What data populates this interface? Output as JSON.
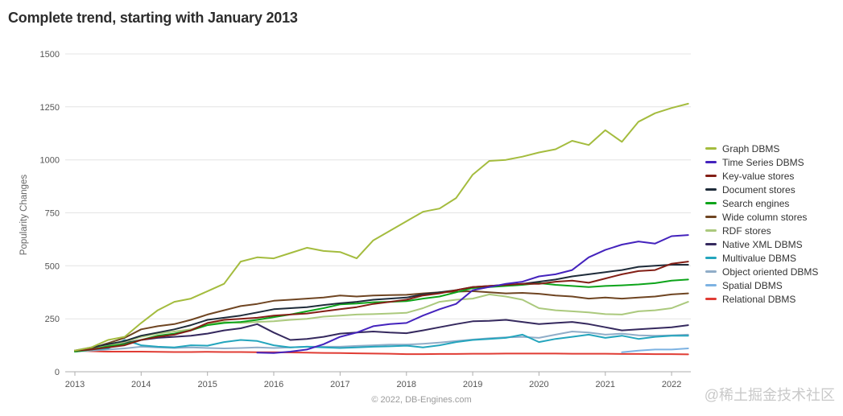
{
  "page": {
    "footer": "© 2022, DB-Engines.com",
    "watermark": "@稀土掘金技术社区"
  },
  "chart_data": {
    "type": "line",
    "title": "Complete trend, starting with January 2013",
    "xlabel": "",
    "ylabel": "Popularity Changes",
    "ylim": [
      0,
      1500
    ],
    "y_ticks": [
      0,
      250,
      500,
      750,
      1000,
      1250,
      1500
    ],
    "x_ticks": [
      2013,
      2014,
      2015,
      2016,
      2017,
      2018,
      2019,
      2020,
      2021,
      2022
    ],
    "x_start": 2013.0,
    "x_step": 0.25,
    "grid": "horizontal",
    "legend_position": "right",
    "series": [
      {
        "name": "Graph DBMS",
        "color": "#a4bc3e",
        "values": [
          100,
          115,
          150,
          165,
          230,
          290,
          330,
          345,
          380,
          415,
          520,
          540,
          535,
          560,
          585,
          570,
          565,
          535,
          620,
          665,
          710,
          755,
          770,
          820,
          930,
          995,
          1000,
          1015,
          1035,
          1050,
          1090,
          1070,
          1140,
          1085,
          1180,
          1220,
          1245,
          1265
        ]
      },
      {
        "name": "Time Series DBMS",
        "color": "#4423bd",
        "values": [
          null,
          null,
          null,
          null,
          null,
          null,
          null,
          null,
          null,
          null,
          null,
          90,
          88,
          95,
          105,
          130,
          165,
          185,
          215,
          225,
          230,
          265,
          295,
          320,
          385,
          400,
          415,
          425,
          450,
          460,
          480,
          540,
          575,
          600,
          615,
          605,
          640,
          645
        ]
      },
      {
        "name": "Key-value stores",
        "color": "#831f16",
        "values": [
          100,
          105,
          115,
          125,
          150,
          165,
          175,
          195,
          230,
          245,
          250,
          255,
          265,
          270,
          275,
          285,
          295,
          305,
          320,
          330,
          340,
          360,
          370,
          385,
          400,
          405,
          410,
          415,
          415,
          425,
          430,
          420,
          440,
          460,
          475,
          480,
          510,
          520
        ]
      },
      {
        "name": "Document stores",
        "color": "#1f2c3a",
        "values": [
          100,
          115,
          130,
          145,
          170,
          185,
          200,
          220,
          245,
          255,
          265,
          280,
          295,
          300,
          305,
          315,
          323,
          330,
          340,
          345,
          350,
          365,
          375,
          385,
          400,
          405,
          410,
          415,
          425,
          435,
          450,
          460,
          470,
          480,
          495,
          500,
          505,
          505
        ]
      },
      {
        "name": "Search engines",
        "color": "#0da41a",
        "values": [
          95,
          105,
          120,
          130,
          150,
          170,
          180,
          195,
          220,
          230,
          235,
          245,
          258,
          270,
          285,
          300,
          318,
          322,
          328,
          330,
          333,
          345,
          355,
          375,
          395,
          400,
          405,
          410,
          418,
          410,
          405,
          400,
          405,
          408,
          412,
          418,
          430,
          435
        ]
      },
      {
        "name": "Wide column stores",
        "color": "#6f4522",
        "values": [
          100,
          110,
          135,
          160,
          200,
          215,
          225,
          245,
          270,
          290,
          310,
          320,
          335,
          340,
          345,
          350,
          360,
          355,
          360,
          362,
          363,
          370,
          375,
          378,
          380,
          375,
          370,
          372,
          368,
          360,
          355,
          345,
          350,
          345,
          350,
          355,
          365,
          370
        ]
      },
      {
        "name": "RDF stores",
        "color": "#abc97d",
        "values": [
          100,
          110,
          125,
          140,
          165,
          180,
          190,
          200,
          225,
          235,
          230,
          235,
          238,
          245,
          250,
          260,
          265,
          270,
          272,
          275,
          278,
          300,
          330,
          340,
          345,
          365,
          355,
          340,
          300,
          290,
          285,
          280,
          272,
          270,
          285,
          290,
          300,
          330
        ]
      },
      {
        "name": "Native XML DBMS",
        "color": "#35295e",
        "values": [
          100,
          110,
          125,
          135,
          150,
          160,
          165,
          170,
          180,
          195,
          205,
          225,
          185,
          150,
          155,
          165,
          180,
          185,
          190,
          185,
          182,
          195,
          210,
          225,
          238,
          240,
          245,
          235,
          225,
          230,
          235,
          225,
          210,
          195,
          200,
          205,
          210,
          220
        ]
      },
      {
        "name": "Multivalue DBMS",
        "color": "#24a5bd",
        "values": [
          95,
          105,
          110,
          150,
          125,
          118,
          115,
          125,
          123,
          140,
          150,
          145,
          125,
          115,
          118,
          115,
          112,
          115,
          118,
          120,
          123,
          115,
          125,
          140,
          150,
          155,
          160,
          175,
          140,
          155,
          165,
          175,
          160,
          170,
          155,
          165,
          170,
          170
        ]
      },
      {
        "name": "Object oriented DBMS",
        "color": "#90adc8",
        "values": [
          95,
          100,
          105,
          110,
          118,
          115,
          112,
          115,
          112,
          110,
          112,
          115,
          112,
          115,
          118,
          118,
          118,
          122,
          125,
          128,
          128,
          132,
          138,
          145,
          152,
          158,
          162,
          165,
          160,
          175,
          190,
          185,
          175,
          180,
          172,
          170,
          172,
          175
        ]
      },
      {
        "name": "Spatial DBMS",
        "color": "#7db2e2",
        "values": [
          null,
          null,
          null,
          null,
          null,
          null,
          null,
          null,
          null,
          null,
          null,
          null,
          null,
          null,
          null,
          null,
          null,
          null,
          null,
          null,
          null,
          null,
          null,
          null,
          null,
          null,
          null,
          null,
          null,
          null,
          null,
          null,
          null,
          92,
          100,
          105,
          105,
          110
        ]
      },
      {
        "name": "Relational DBMS",
        "color": "#e03c34",
        "values": [
          100,
          97,
          95,
          95,
          95,
          94,
          93,
          93,
          94,
          93,
          93,
          92,
          92,
          91,
          90,
          89,
          88,
          87,
          86,
          85,
          83,
          83,
          84,
          84,
          85,
          85,
          86,
          86,
          86,
          86,
          85,
          85,
          85,
          84,
          84,
          83,
          83,
          82
        ]
      }
    ]
  }
}
